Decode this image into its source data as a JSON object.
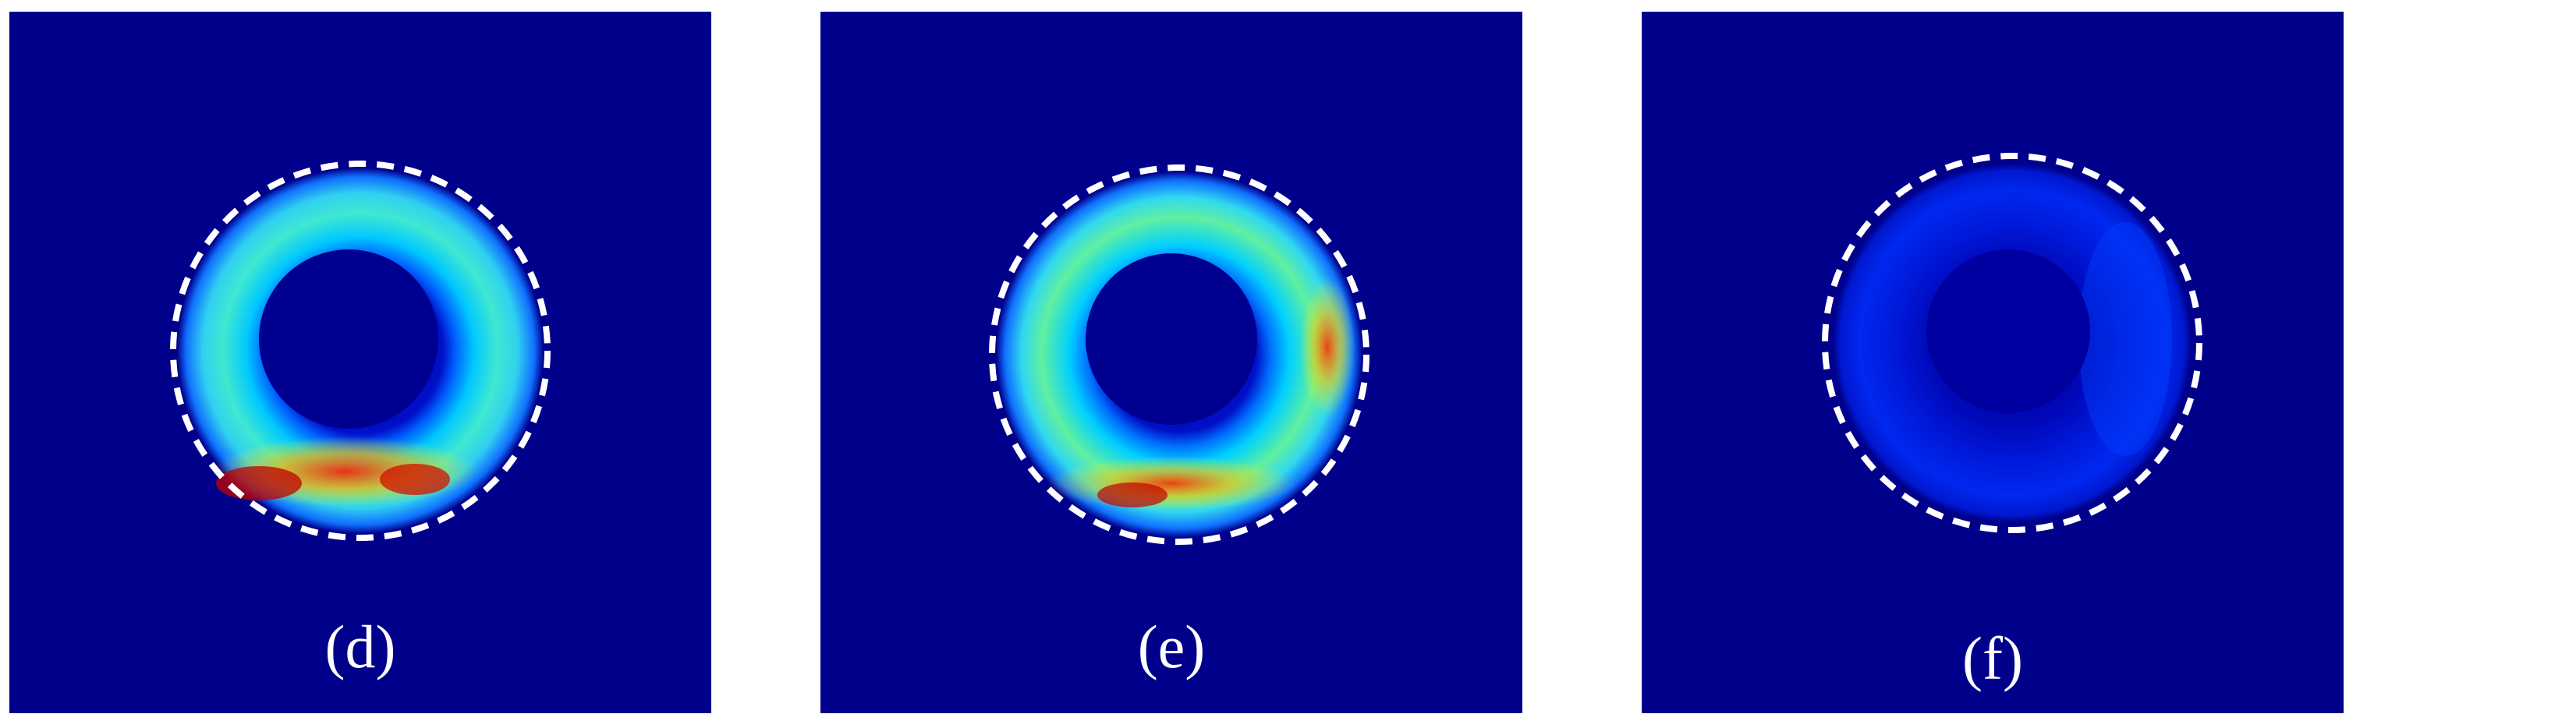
{
  "figure": {
    "panels": [
      {
        "id": "d",
        "label": "(d)",
        "colormap": "jet",
        "intensity": "high"
      },
      {
        "id": "e",
        "label": "(e)",
        "colormap": "jet",
        "intensity": "high"
      },
      {
        "id": "f",
        "label": "(f)",
        "colormap": "jet",
        "intensity": "low"
      }
    ]
  },
  "colors": {
    "background": "#00008b",
    "outline": "#ffffff"
  }
}
